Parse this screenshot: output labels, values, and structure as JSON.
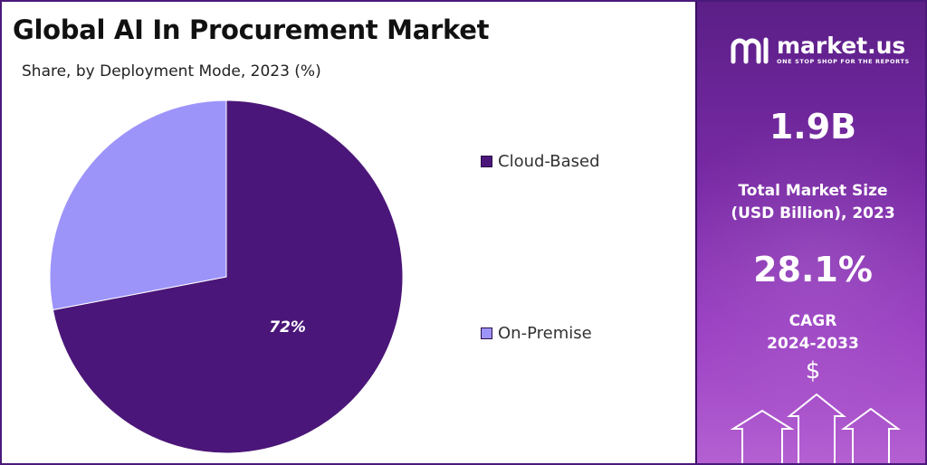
{
  "title": "Global AI In Procurement Market",
  "subtitle": "Share, by Deployment Mode, 2023 (%)",
  "chart_data": {
    "type": "pie",
    "title": "Global AI In Procurement Market",
    "subtitle": "Share, by Deployment Mode, 2023 (%)",
    "legend_position": "right",
    "slices": [
      {
        "name": "Cloud-Based",
        "value": 72,
        "label": "72%",
        "color": "#4b1679"
      },
      {
        "name": "On-Premise",
        "value": 28,
        "label": "",
        "color": "#9d94fa"
      }
    ]
  },
  "brand": {
    "name": "market.us",
    "tagline": "ONE STOP SHOP FOR THE REPORTS",
    "icon": "market-us-logo-icon"
  },
  "stats": {
    "market_size_value": "1.9B",
    "market_size_label_line1": "Total Market Size",
    "market_size_label_line2": "(USD Billion), 2023",
    "cagr_value": "28.1%",
    "cagr_label_line1": "CAGR",
    "cagr_label_line2": "2024-2033",
    "currency_symbol": "$"
  },
  "colors": {
    "panel_gradient_top": "#5b1f87",
    "panel_gradient_bottom": "#b460d2",
    "cloud": "#4b1679",
    "on_premise": "#9d94fa"
  }
}
